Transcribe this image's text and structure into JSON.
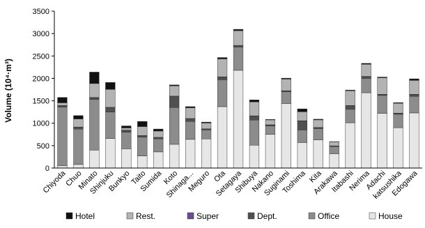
{
  "chart_data": {
    "type": "bar",
    "stacked": true,
    "ylabel": "Volume (10⁴·m³)",
    "xlabel": "",
    "ylim": [
      0,
      3500
    ],
    "yticks": [
      0,
      500,
      1000,
      1500,
      2000,
      2500,
      3000,
      3500
    ],
    "grid": false,
    "legend_position": "bottom",
    "categories": [
      "Chiyoda",
      "Chuo",
      "Minato",
      "Shinjuku",
      "Bunkyo",
      "Taito",
      "Sumida",
      "Koto",
      "Shinaga...",
      "Meguro",
      "Ota",
      "Setagaya",
      "Shibuya",
      "Nakano",
      "Suginami",
      "Toshima",
      "Kita",
      "Arakawa",
      "Itabashi",
      "Nerima",
      "Adachi",
      "katsushika",
      "Edogawa"
    ],
    "series": [
      {
        "name": "House",
        "color": "#e6e6e6",
        "values": [
          50,
          80,
          400,
          660,
          430,
          270,
          360,
          530,
          640,
          650,
          1370,
          2180,
          510,
          750,
          1440,
          570,
          630,
          320,
          1010,
          1680,
          1220,
          900,
          1230
        ]
      },
      {
        "name": "Office",
        "color": "#8c8c8c",
        "values": [
          1310,
          790,
          1130,
          590,
          370,
          420,
          290,
          820,
          400,
          200,
          600,
          520,
          560,
          190,
          260,
          280,
          250,
          160,
          300,
          320,
          400,
          300,
          370
        ]
      },
      {
        "name": "Dept.",
        "color": "#505050",
        "values": [
          30,
          40,
          40,
          100,
          40,
          30,
          30,
          250,
          60,
          20,
          60,
          30,
          90,
          20,
          20,
          200,
          20,
          10,
          80,
          40,
          20,
          20,
          40
        ]
      },
      {
        "name": "Super",
        "color": "#6a4c93",
        "values": [
          5,
          5,
          5,
          5,
          5,
          5,
          5,
          5,
          5,
          5,
          5,
          5,
          5,
          5,
          5,
          5,
          5,
          5,
          5,
          5,
          5,
          5,
          5
        ]
      },
      {
        "name": "Rest.",
        "color": "#b3b3b3",
        "values": [
          60,
          180,
          310,
          400,
          50,
          200,
          140,
          230,
          240,
          130,
          400,
          330,
          310,
          110,
          260,
          200,
          170,
          90,
          330,
          270,
          370,
          220,
          310
        ]
      },
      {
        "name": "Hotel",
        "color": "#111111",
        "values": [
          120,
          75,
          255,
          155,
          45,
          115,
          45,
          20,
          25,
          20,
          30,
          30,
          45,
          10,
          20,
          65,
          15,
          5,
          15,
          20,
          15,
          15,
          35
        ]
      }
    ]
  }
}
